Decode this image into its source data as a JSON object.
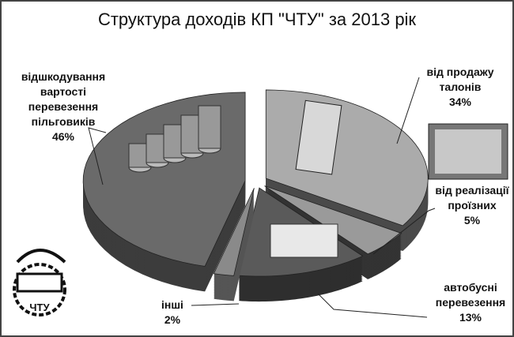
{
  "chart_data": {
    "type": "pie",
    "style": "3d-exploded",
    "title": "Структура доходів КП \"ЧТУ\" за 2013 рік",
    "start_angle": "12 o'clock",
    "direction": "clockwise",
    "slices": [
      {
        "label": "від продажу талонів",
        "label_lines": [
          "від продажу",
          "талонів"
        ],
        "value": 34,
        "value_label": "34%",
        "color": "#ababab",
        "side_color": "#4a4a4a",
        "picture": "ticket"
      },
      {
        "label": "від реалізації проїзних",
        "label_lines": [
          "від реалізації",
          "проїзних"
        ],
        "value": 5,
        "value_label": "5%",
        "color": "#9a9a9a",
        "side_color": "#333333"
      },
      {
        "label": "автобусні перевезення",
        "label_lines": [
          "автобусні",
          "перевезення"
        ],
        "value": 13,
        "value_label": "13%",
        "color": "#5a5a5a",
        "side_color": "#2e2e2e",
        "picture": "bus"
      },
      {
        "label": "інші",
        "label_lines": [
          "інші"
        ],
        "value": 2,
        "value_label": "2%",
        "color": "#8a8a8a",
        "side_color": "#555555"
      },
      {
        "label": "відшкодування вартості перевезення пільговиків",
        "label_lines": [
          "відшкодування",
          "вартості",
          "перевезення",
          "пільговиків"
        ],
        "value": 46,
        "value_label": "46%",
        "color": "#6a6a6a",
        "side_color": "#3c3c3c",
        "picture": "coins"
      }
    ],
    "legend": "none",
    "logo": "ЧТУ"
  }
}
